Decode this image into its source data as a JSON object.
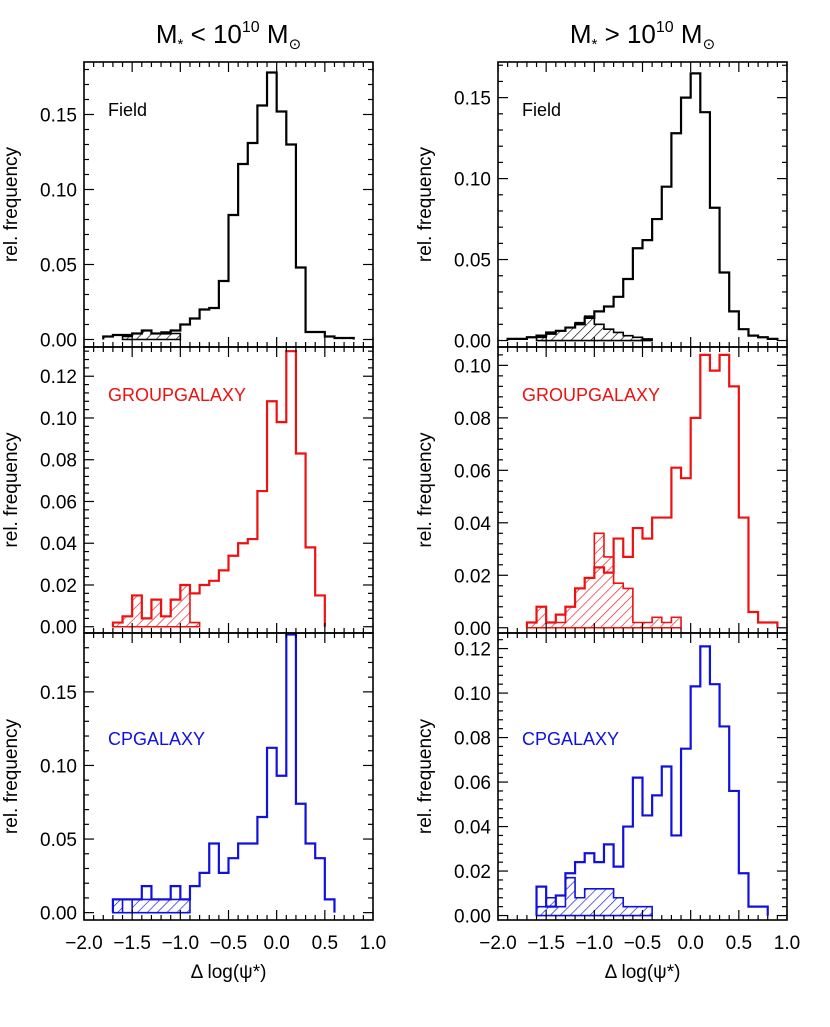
{
  "columns": [
    {
      "title_main": "M",
      "title_sub": "*",
      "title_rel": " < 10",
      "title_exp": "10",
      "title_unit": " M",
      "title_unit_sub": "⊙"
    },
    {
      "title_main": "M",
      "title_sub": "*",
      "title_rel": " > 10",
      "title_exp": "10",
      "title_unit": " M",
      "title_unit_sub": "⊙"
    }
  ],
  "xlabel": "Δ log(ψ*)",
  "colors": {
    "field": "#000000",
    "group": "#ee1111",
    "cp": "#1111dd"
  },
  "chart_data": [
    {
      "type": "histogram",
      "panel": "Field",
      "mass_bin": "low",
      "label": "Field",
      "color": "#000000",
      "xlim": [
        -2.0,
        1.0
      ],
      "ylim": [
        -0.005,
        0.185
      ],
      "bin_width": 0.1,
      "yticks": [
        0.0,
        0.05,
        0.1,
        0.15
      ],
      "ytick_labels": [
        "0.00",
        "0.05",
        "0.10",
        "0.15"
      ],
      "ylabel": "rel. frequency",
      "series": [
        {
          "bin_start": -1.8,
          "values": [
            0.002,
            0.003,
            0.003,
            0.004,
            0.006,
            0.004,
            0.004,
            0.006,
            0.01,
            0.014,
            0.02,
            0.021,
            0.039,
            0.083,
            0.117,
            0.131,
            0.156,
            0.178,
            0.152,
            0.13,
            0.048,
            0.005,
            0.005,
            0.002,
            0.001,
            0.001
          ]
        },
        {
          "bin_start": -1.6,
          "values": [
            0.002,
            0.004,
            0.006,
            0.004,
            0.005,
            0.004
          ],
          "hatched": true
        }
      ]
    },
    {
      "type": "histogram",
      "panel": "GROUPGALAXY",
      "mass_bin": "low",
      "label": "GROUPGALAXY",
      "color": "#ee1111",
      "xlim": [
        -2.0,
        1.0
      ],
      "ylim": [
        -0.003,
        0.134
      ],
      "bin_width": 0.1,
      "yticks": [
        0.0,
        0.02,
        0.04,
        0.06,
        0.08,
        0.1,
        0.12
      ],
      "ytick_labels": [
        "0.00",
        "0.02",
        "0.04",
        "0.06",
        "0.08",
        "0.10",
        "0.12"
      ],
      "ylabel": "rel. frequency",
      "series": [
        {
          "bin_start": -1.7,
          "values": [
            0.002,
            0.005,
            0.015,
            0.004,
            0.013,
            0.005,
            0.013,
            0.02,
            0.016,
            0.02,
            0.022,
            0.027,
            0.034,
            0.04,
            0.042,
            0.065,
            0.108,
            0.098,
            0.132,
            0.083,
            0.038,
            0.015
          ]
        },
        {
          "bin_start": -1.7,
          "values": [
            0.002,
            0.005,
            0.015,
            0.004,
            0.013,
            0.005,
            0.013,
            0.02,
            0.002
          ],
          "hatched": true
        }
      ]
    },
    {
      "type": "histogram",
      "panel": "CPGALAXY",
      "mass_bin": "low",
      "label": "CPGALAXY",
      "color": "#1111dd",
      "xlim": [
        -2.0,
        1.0
      ],
      "ylim": [
        -0.005,
        0.19
      ],
      "bin_width": 0.1,
      "yticks": [
        0.0,
        0.05,
        0.1,
        0.15
      ],
      "ytick_labels": [
        "0.00",
        "0.05",
        "0.10",
        "0.15"
      ],
      "ylabel": "rel. frequency",
      "series": [
        {
          "bin_start": -1.7,
          "values": [
            0.009,
            0.009,
            0.009,
            0.018,
            0.009,
            0.009,
            0.018,
            0.009,
            0.018,
            0.027,
            0.047,
            0.027,
            0.037,
            0.047,
            0.047,
            0.065,
            0.112,
            0.093,
            0.189,
            0.074,
            0.047,
            0.037,
            0.009
          ]
        },
        {
          "bin_start": -1.7,
          "values": [
            0.009,
            0.0,
            0.009,
            0.009,
            0.009,
            0.009,
            0.009,
            0.009
          ],
          "hatched": true
        }
      ]
    },
    {
      "type": "histogram",
      "panel": "Field",
      "mass_bin": "high",
      "label": "Field",
      "color": "#000000",
      "xlim": [
        -2.0,
        1.0
      ],
      "ylim": [
        -0.004,
        0.172
      ],
      "bin_width": 0.1,
      "yticks": [
        0.0,
        0.05,
        0.1,
        0.15
      ],
      "ytick_labels": [
        "0.00",
        "0.05",
        "0.10",
        "0.15"
      ],
      "ylabel": "rel. frequency",
      "series": [
        {
          "bin_start": -1.9,
          "values": [
            0.001,
            0.001,
            0.002,
            0.003,
            0.005,
            0.006,
            0.008,
            0.01,
            0.014,
            0.018,
            0.021,
            0.027,
            0.038,
            0.057,
            0.062,
            0.075,
            0.095,
            0.128,
            0.15,
            0.165,
            0.141,
            0.082,
            0.042,
            0.018,
            0.007,
            0.003,
            0.002,
            0.001
          ]
        },
        {
          "bin_start": -1.6,
          "values": [
            0.002,
            0.004,
            0.006,
            0.008,
            0.011,
            0.015,
            0.01,
            0.007,
            0.005,
            0.003,
            0.002,
            0.001
          ],
          "hatched": true
        }
      ]
    },
    {
      "type": "histogram",
      "panel": "GROUPGALAXY",
      "mass_bin": "high",
      "label": "GROUPGALAXY",
      "color": "#ee1111",
      "xlim": [
        -2.0,
        1.0
      ],
      "ylim": [
        -0.002,
        0.107
      ],
      "bin_width": 0.1,
      "yticks": [
        0.0,
        0.02,
        0.04,
        0.06,
        0.08,
        0.1
      ],
      "ytick_labels": [
        "0.00",
        "0.02",
        "0.04",
        "0.06",
        "0.08",
        "0.10"
      ],
      "ylabel": "rel. frequency",
      "series": [
        {
          "bin_start": -1.7,
          "values": [
            0.002,
            0.008,
            0.002,
            0.005,
            0.008,
            0.015,
            0.019,
            0.023,
            0.021,
            0.034,
            0.027,
            0.038,
            0.034,
            0.042,
            0.042,
            0.061,
            0.057,
            0.08,
            0.104,
            0.098,
            0.104,
            0.092,
            0.042,
            0.006,
            0.002,
            0.002
          ]
        },
        {
          "bin_start": -1.7,
          "values": [
            0.002,
            0.008,
            0.002,
            0.002,
            0.008,
            0.015,
            0.019,
            0.036,
            0.027,
            0.017,
            0.015,
            0.002,
            0.002,
            0.004,
            0.002,
            0.004
          ],
          "hatched": true
        }
      ]
    },
    {
      "type": "histogram",
      "panel": "CPGALAXY",
      "mass_bin": "high",
      "label": "CPGALAXY",
      "color": "#1111dd",
      "xlim": [
        -2.0,
        1.0
      ],
      "ylim": [
        -0.002,
        0.127
      ],
      "bin_width": 0.1,
      "yticks": [
        0.0,
        0.02,
        0.04,
        0.06,
        0.08,
        0.1,
        0.12
      ],
      "ytick_labels": [
        "0.00",
        "0.02",
        "0.04",
        "0.06",
        "0.08",
        "0.10",
        "0.12"
      ],
      "ylabel": "rel. frequency",
      "series": [
        {
          "bin_start": -1.6,
          "values": [
            0.013,
            0.004,
            0.009,
            0.019,
            0.024,
            0.028,
            0.024,
            0.032,
            0.022,
            0.04,
            0.062,
            0.045,
            0.054,
            0.067,
            0.036,
            0.075,
            0.103,
            0.121,
            0.104,
            0.085,
            0.056,
            0.019,
            0.004,
            0.004
          ]
        },
        {
          "bin_start": -1.6,
          "values": [
            0.004,
            0.008,
            0.004,
            0.017,
            0.008,
            0.012,
            0.012,
            0.012,
            0.008,
            0.004,
            0.004,
            0.004
          ],
          "hatched": true
        }
      ]
    }
  ]
}
